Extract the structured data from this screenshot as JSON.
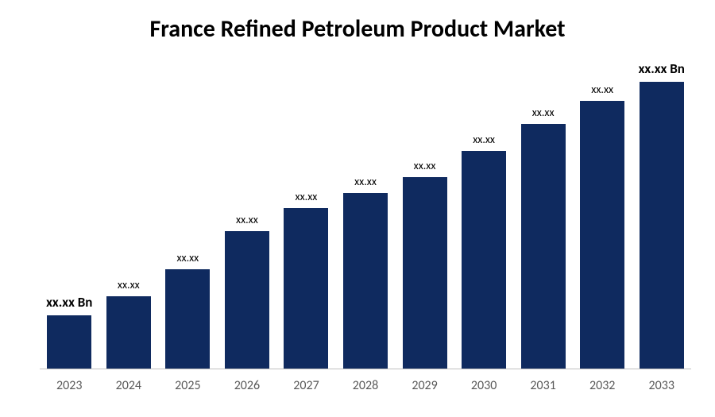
{
  "chart": {
    "type": "bar",
    "title": "France Refined Petroleum Product Market",
    "title_fontsize": 30,
    "title_color": "#000000",
    "background_color": "#ffffff",
    "bar_color": "#0f2a5f",
    "axis_line_color": "#bfbfbf",
    "x_label_color": "#595959",
    "x_label_fontsize": 16,
    "data_label_color": "#000000",
    "data_label_fontsize": 15,
    "categories": [
      "2023",
      "2024",
      "2025",
      "2026",
      "2027",
      "2028",
      "2029",
      "2030",
      "2031",
      "2032",
      "2033"
    ],
    "values": [
      70,
      95,
      130,
      180,
      210,
      230,
      250,
      285,
      320,
      350,
      375
    ],
    "value_labels": [
      "xx.xx Bn",
      "xx.xx",
      "xx.xx",
      "xx.xx",
      "xx.xx",
      "xx.xx",
      "xx.xx",
      "xx.xx",
      "xx.xx",
      "xx.xx",
      "xx.xx Bn"
    ],
    "label_bold": [
      true,
      false,
      false,
      false,
      false,
      false,
      false,
      false,
      false,
      false,
      true
    ],
    "ylim": [
      0,
      400
    ],
    "plot_area_height": 385
  }
}
